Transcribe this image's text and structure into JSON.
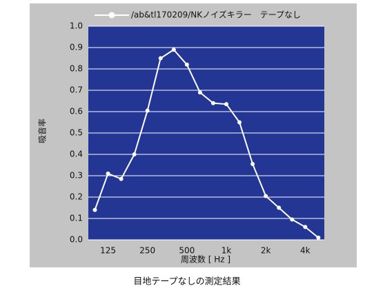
{
  "chart_data": {
    "type": "line",
    "ylabel": "吸音率",
    "xlabel": "周波数 [ Hz ]",
    "categories": [
      null,
      "125",
      null,
      null,
      "250",
      null,
      null,
      "500",
      null,
      null,
      "1k",
      null,
      null,
      "2k",
      null,
      null,
      "4k",
      null
    ],
    "series": [
      {
        "name": "/ab&tl170209/NKノイズキラー　テープなし",
        "color": "#ffffff",
        "values": [
          0.14,
          0.31,
          0.285,
          0.4,
          0.605,
          0.85,
          0.89,
          0.82,
          0.69,
          0.64,
          0.635,
          0.55,
          0.355,
          0.205,
          0.15,
          0.095,
          0.06,
          0.01
        ]
      }
    ],
    "ylim": [
      0,
      1
    ],
    "yticks": [
      {
        "value": 0,
        "label": "0.0"
      },
      {
        "value": 0.1,
        "label": "0.1"
      },
      {
        "value": 0.2,
        "label": "0.2"
      },
      {
        "value": 0.3,
        "label": "0.3"
      },
      {
        "value": 0.4,
        "label": "0.4"
      },
      {
        "value": 0.5,
        "label": "0.5"
      },
      {
        "value": 0.6,
        "label": "0.6"
      },
      {
        "value": 0.7,
        "label": "0.7"
      },
      {
        "value": 0.8,
        "label": "0.8"
      },
      {
        "value": 0.9,
        "label": "0.9"
      },
      {
        "value": 1,
        "label": "1.0"
      }
    ],
    "grid": true,
    "plot_color": "#233694"
  },
  "caption": "目地テープなしの測定結果"
}
